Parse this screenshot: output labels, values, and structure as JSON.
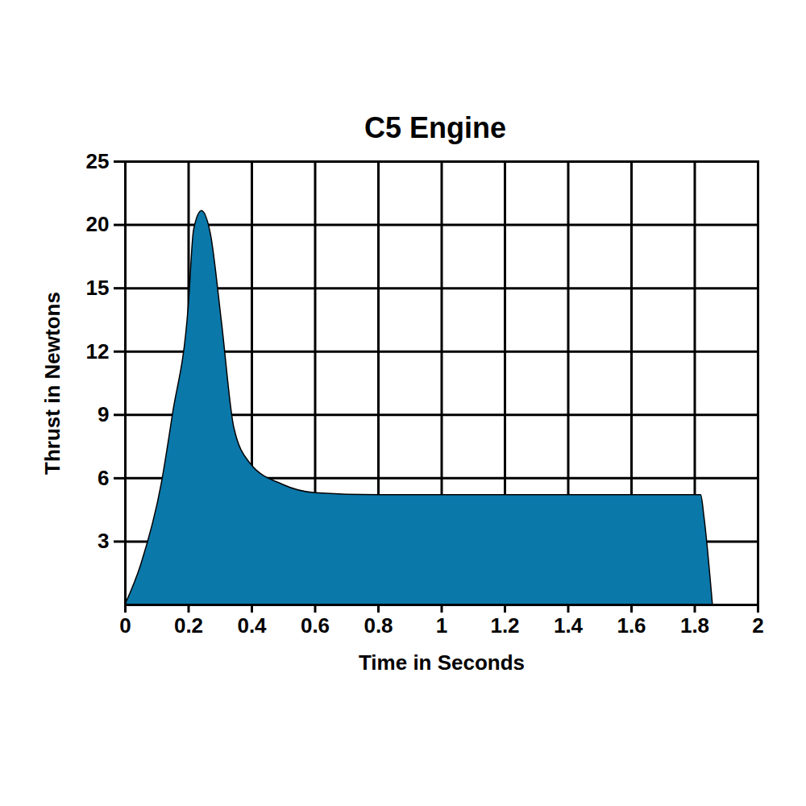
{
  "chart_data": {
    "type": "area",
    "title": "C5 Engine",
    "x_label": "Time in Seconds",
    "y_label": "Thrust in Newtons",
    "x": [
      0,
      0.05,
      0.115,
      0.15,
      0.2,
      0.217,
      0.242,
      0.27,
      0.305,
      0.344,
      0.395,
      0.497,
      0.6,
      0.8,
      1.0,
      1.2,
      1.4,
      1.6,
      1.82,
      1.83,
      1.857
    ],
    "values": [
      0,
      1.9,
      5.75,
      9,
      14.1,
      19.6,
      21.1,
      19.3,
      13.4,
      8.4,
      6.7,
      5.7,
      5.3,
      5.2,
      5.2,
      5.2,
      5.2,
      5.2,
      5.2,
      4.2,
      0
    ],
    "color": "#0b78aa",
    "xlim": [
      0,
      2
    ],
    "xticks": [
      0,
      0.2,
      0.4,
      0.6,
      0.8,
      1,
      1.2,
      1.4,
      1.6,
      1.8,
      2
    ],
    "ylim": [
      0,
      25
    ],
    "yticks": [
      3,
      6,
      9,
      12,
      15,
      20,
      25
    ],
    "grid": true
  }
}
